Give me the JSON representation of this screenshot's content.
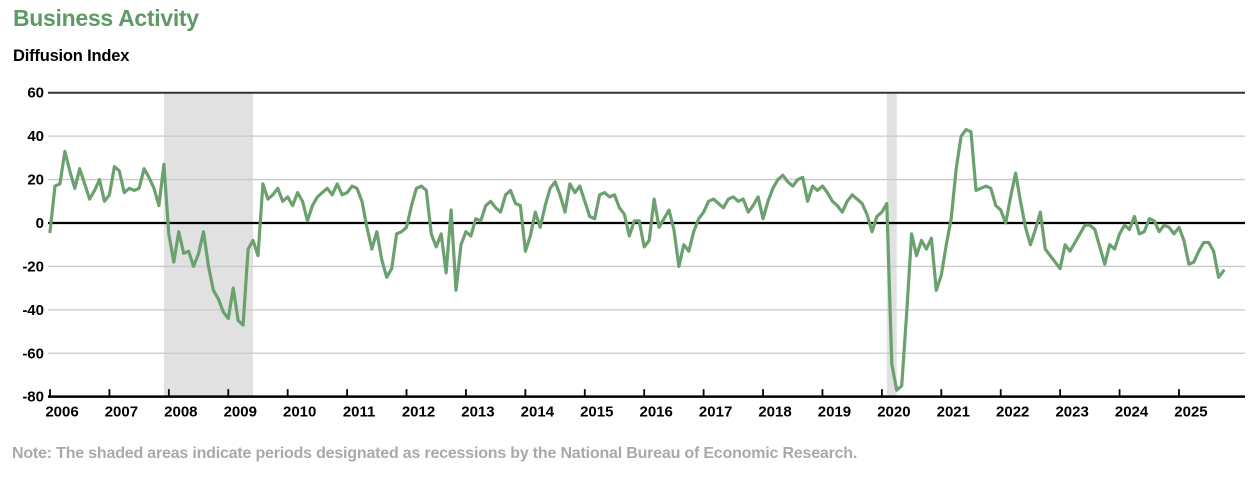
{
  "header": {
    "title": "Business Activity",
    "subtitle": "Diffusion Index"
  },
  "note": "Note: The shaded areas indicate periods designated as recessions by the National Bureau of Economic Research.",
  "colors": {
    "line": "#6ba06f",
    "title_text": "#5e9a66",
    "recession_band": "#e1e1e1",
    "gridline": "#c9c9c9",
    "top_border": "#333333",
    "zero_line": "#000000",
    "axis_line": "#000000",
    "note_text": "#a9a9a9"
  },
  "chart_data": {
    "type": "line",
    "title": "Business Activity",
    "ylabel": "Diffusion Index",
    "frequency": "monthly",
    "x_start": "2006-01",
    "x_end": "2025-10",
    "ylim": [
      -80,
      60
    ],
    "y_ticks": [
      60,
      40,
      20,
      0,
      -20,
      -40,
      -60,
      -80
    ],
    "x_tick_years": [
      "2006",
      "2007",
      "2008",
      "2009",
      "2010",
      "2011",
      "2012",
      "2013",
      "2014",
      "2015",
      "2016",
      "2017",
      "2018",
      "2019",
      "2020",
      "2021",
      "2022",
      "2023",
      "2024",
      "2025"
    ],
    "grid": true,
    "legend": "none",
    "recessions": [
      {
        "start": "2007-12",
        "end": "2009-06"
      },
      {
        "start": "2020-02",
        "end": "2020-04"
      }
    ],
    "values": [
      -4,
      17,
      18,
      33,
      24,
      16,
      25,
      18,
      11,
      15,
      20,
      10,
      13,
      26,
      24,
      14,
      16,
      15,
      16,
      25,
      21,
      16,
      8,
      27,
      -5,
      -18,
      -4,
      -14,
      -13,
      -20,
      -14,
      -4,
      -20,
      -31,
      -35,
      -41,
      -44,
      -30,
      -45,
      -47,
      -12,
      -8,
      -15,
      18,
      11,
      13,
      16,
      10,
      12,
      8,
      14,
      10,
      1,
      8,
      12,
      14,
      16,
      13,
      18,
      13,
      14,
      17,
      16,
      10,
      -2,
      -12,
      -4,
      -17,
      -25,
      -21,
      -5,
      -4,
      -2,
      8,
      16,
      17,
      15,
      -5,
      -11,
      -5,
      -23,
      6,
      -31,
      -10,
      -4,
      -6,
      2,
      1,
      8,
      10,
      7,
      5,
      13,
      15,
      9,
      8,
      -13,
      -6,
      5,
      -2,
      8,
      16,
      19,
      13,
      5,
      18,
      14,
      17,
      10,
      3,
      2,
      13,
      14,
      12,
      13,
      7,
      4,
      -6,
      1,
      1,
      -11,
      -8,
      11,
      -2,
      2,
      6,
      -3,
      -20,
      -10,
      -13,
      -4,
      2,
      5,
      10,
      11,
      9,
      7,
      11,
      12,
      10,
      11,
      5,
      8,
      12,
      2,
      10,
      16,
      20,
      22,
      19,
      17,
      20,
      21,
      10,
      17,
      15,
      17,
      14,
      10,
      8,
      5,
      10,
      13,
      11,
      9,
      4,
      -4,
      3,
      5,
      9,
      -65,
      -77,
      -75,
      -42,
      -5,
      -15,
      -8,
      -12,
      -7,
      -31,
      -24,
      -10,
      2,
      25,
      40,
      43,
      42,
      15,
      16,
      17,
      16,
      8,
      6,
      0,
      12,
      23,
      10,
      -2,
      -10,
      -3,
      5,
      -12,
      -15,
      -18,
      -21,
      -10,
      -13,
      -9,
      -5,
      -1,
      -1,
      -3,
      -11,
      -19,
      -10,
      -12,
      -5,
      -1,
      -3,
      3,
      -5,
      -4,
      2,
      1,
      -4,
      -1,
      -2,
      -5,
      -2,
      -8,
      -19,
      -18,
      -13,
      -9,
      -9,
      -13,
      -25,
      -22
    ]
  }
}
